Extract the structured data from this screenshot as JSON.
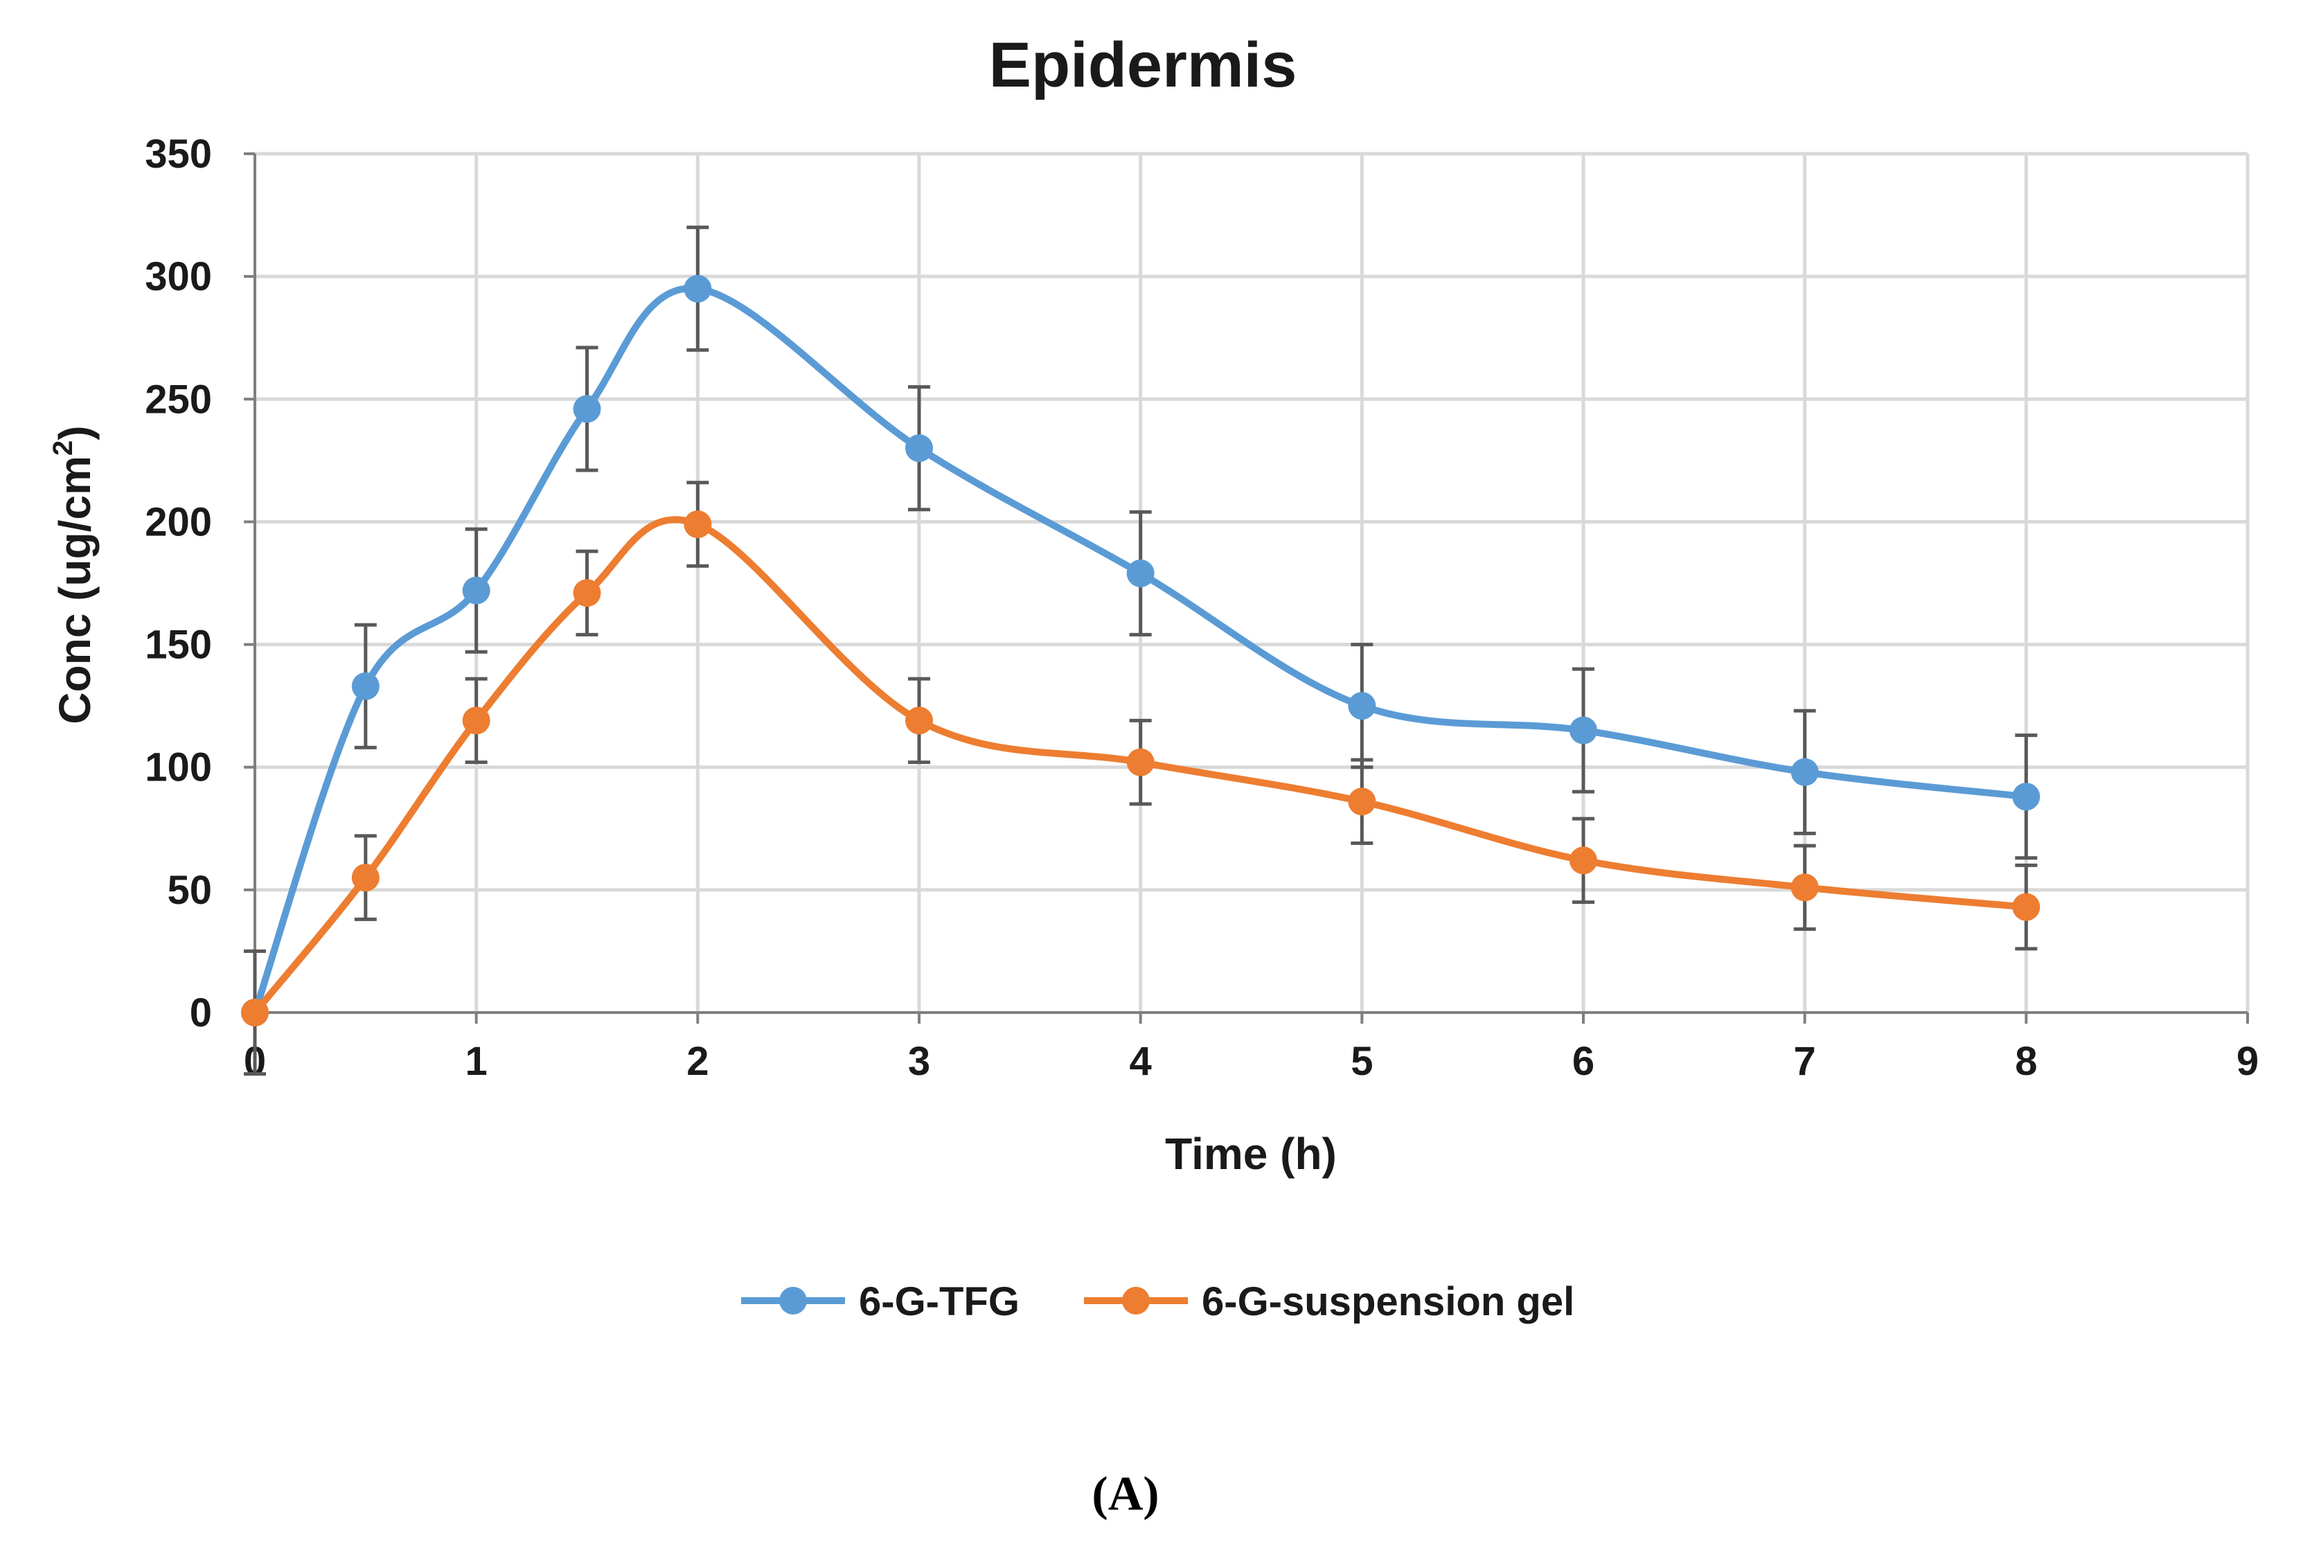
{
  "chart_data": {
    "type": "line",
    "title": "Epidermis",
    "xlabel": "Time (h)",
    "ylabel": "Conc (ug/cm²)",
    "ylabel_parts": {
      "main": "Conc (ug/cm",
      "sup": "2",
      "close": ")"
    },
    "xlim": [
      0,
      9
    ],
    "ylim": [
      0,
      350
    ],
    "xticks": [
      0,
      1,
      2,
      3,
      4,
      5,
      6,
      7,
      8,
      9
    ],
    "yticks": [
      0,
      50,
      100,
      150,
      200,
      250,
      300,
      350
    ],
    "grid": true,
    "legend_position": "bottom-center",
    "panel_label": "(A)",
    "series": [
      {
        "name": "6-G-TFG",
        "color": "#5b9bd5",
        "x": [
          0,
          0.5,
          1,
          1.5,
          2,
          3,
          4,
          5,
          6,
          7,
          8
        ],
        "values": [
          0,
          133,
          172,
          246,
          295,
          230,
          179,
          125,
          115,
          98,
          88
        ],
        "error": [
          25,
          25,
          25,
          25,
          25,
          25,
          25,
          25,
          25,
          25,
          25
        ]
      },
      {
        "name": "6-G-suspension gel",
        "color": "#ed7d31",
        "x": [
          0,
          0.5,
          1,
          1.5,
          2,
          3,
          4,
          5,
          6,
          7,
          8
        ],
        "values": [
          0,
          55,
          119,
          171,
          199,
          119,
          102,
          86,
          62,
          51,
          43
        ],
        "error": [
          0,
          17,
          17,
          17,
          17,
          17,
          17,
          17,
          17,
          17,
          17
        ]
      }
    ]
  }
}
